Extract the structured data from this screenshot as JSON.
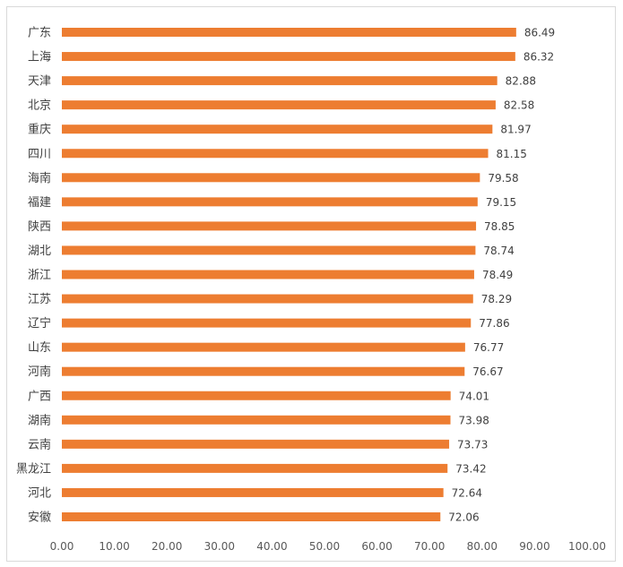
{
  "chart_data": {
    "type": "bar",
    "orientation": "horizontal",
    "title": "",
    "xlabel": "",
    "ylabel": "",
    "xlim": [
      0,
      100
    ],
    "tick_step": 10,
    "tick_labels": [
      "0.00",
      "10.00",
      "20.00",
      "30.00",
      "40.00",
      "50.00",
      "60.00",
      "70.00",
      "80.00",
      "90.00",
      "100.00"
    ],
    "bar_color": "#ED7D31",
    "categories": [
      "广东",
      "上海",
      "天津",
      "北京",
      "重庆",
      "四川",
      "海南",
      "福建",
      "陕西",
      "湖北",
      "浙江",
      "江苏",
      "辽宁",
      "山东",
      "河南",
      "广西",
      "湖南",
      "云南",
      "黑龙江",
      "河北",
      "安徽"
    ],
    "values": [
      86.49,
      86.32,
      82.88,
      82.58,
      81.97,
      81.15,
      79.58,
      79.15,
      78.85,
      78.74,
      78.49,
      78.29,
      77.86,
      76.77,
      76.67,
      74.01,
      73.98,
      73.73,
      73.42,
      72.64,
      72.06
    ],
    "value_labels": [
      "86.49",
      "86.32",
      "82.88",
      "82.58",
      "81.97",
      "81.15",
      "79.58",
      "79.15",
      "78.85",
      "78.74",
      "78.49",
      "78.29",
      "77.86",
      "76.77",
      "76.67",
      "74.01",
      "73.98",
      "73.73",
      "73.42",
      "72.64",
      "72.06"
    ]
  }
}
